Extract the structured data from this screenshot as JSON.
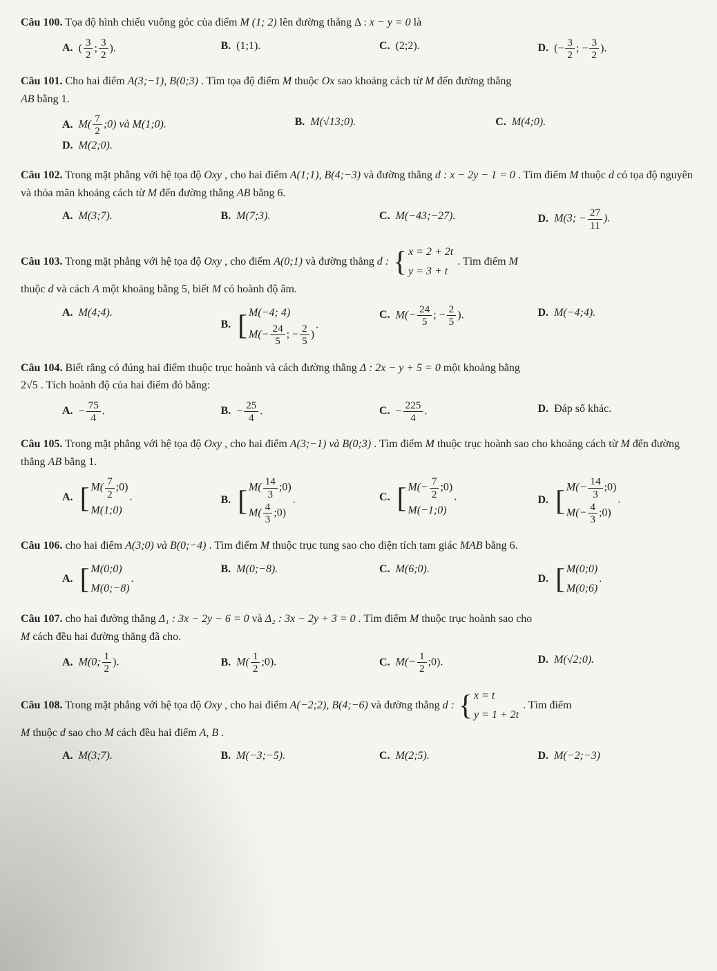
{
  "q100": {
    "label": "Câu 100.",
    "stem_pre": "Tọa độ hình chiếu vuông góc của điểm ",
    "point": "M (1; 2)",
    "stem_mid": " lên đường thẳng Δ : ",
    "eq": "x − y = 0",
    "stem_post": " là",
    "optA": {
      "l": "A.",
      "open": "(",
      "n1": "3",
      "d1": "2",
      "sep": ";",
      "n2": "3",
      "d2": "2",
      "close": ")."
    },
    "optB": {
      "l": "B.",
      "val": "(1;1)."
    },
    "optC": {
      "l": "C.",
      "val": "(2;2)."
    },
    "optD": {
      "l": "D.",
      "open": "(−",
      "n1": "3",
      "d1": "2",
      "sep": "; −",
      "n2": "3",
      "d2": "2",
      "close": ")."
    }
  },
  "q101": {
    "label": "Câu 101.",
    "stem1": "Cho hai điểm ",
    "pts": "A(3;−1), B(0;3)",
    "stem2": ". Tìm tọa độ điểm ",
    "M": "M",
    "stem3": " thuộc ",
    "Ox": "Ox",
    "stem4": " sao khoảng cách từ ",
    "stem5": " đến đường thẳng ",
    "AB": "AB",
    "stem6": " bằng 1.",
    "optA": {
      "l": "A.",
      "pre": "M(",
      "n": "7",
      "d": "2",
      "post": ";0) và M(1;0)."
    },
    "optB": {
      "l": "B.",
      "val": "M(√13;0)."
    },
    "optC": {
      "l": "C.",
      "val": "M(4;0)."
    },
    "optD": {
      "l": "D.",
      "val": "M(2;0)."
    }
  },
  "q102": {
    "label": "Câu 102.",
    "stem1": "Trong mặt phẳng với hệ tọa độ ",
    "Oxy": "Oxy",
    "stem2": ", cho hai điểm ",
    "pts": "A(1;1), B(4;−3)",
    "stem3": " và đường thẳng ",
    "d": "d : x − 2y − 1 = 0",
    "stem4": ". Tìm điểm ",
    "M": "M",
    "stem5": " thuộc ",
    "dname": "d",
    "stem6": " có tọa độ nguyên và thỏa mãn khoảng cách từ ",
    "stem7": " đến đường thẳng ",
    "AB": "AB",
    "stem8": " bằng 6.",
    "optA": {
      "l": "A.",
      "val": "M(3;7)."
    },
    "optB": {
      "l": "B.",
      "val": "M(7;3)."
    },
    "optC": {
      "l": "C.",
      "val": "M(−43;−27)."
    },
    "optD": {
      "l": "D.",
      "pre": "M(3; −",
      "n": "27",
      "d": "11",
      "post": ")."
    }
  },
  "q103": {
    "label": "Câu 103.",
    "stem1": "Trong mặt phẳng với hệ tọa độ ",
    "Oxy": "Oxy",
    "stem2": ", cho điểm ",
    "pt": "A(0;1)",
    "stem3": " và đường thẳng ",
    "dname": "d :",
    "sys1": "x = 2 + 2t",
    "sys2": "y = 3 + t",
    "stem4": ". Tìm điểm ",
    "M": "M",
    "stem5": " thuộc ",
    "d2": "d",
    "stem6": " và cách ",
    "A": "A",
    "stem7": " một khoảng bằng 5, biết ",
    "stem8": " có hoành độ âm.",
    "optA": {
      "l": "A.",
      "val": "M(4;4)."
    },
    "optB": {
      "l": "B.",
      "r1": "M(−4; 4)",
      "r2pre": "M(−",
      "n1": "24",
      "d1": "5",
      "sep": "; −",
      "n2": "2",
      "d2": "5",
      "r2post": ")",
      "dot": "."
    },
    "optC": {
      "l": "C.",
      "pre": "M(−",
      "n1": "24",
      "d1": "5",
      "sep": "; −",
      "n2": "2",
      "d2": "5",
      "post": ")."
    },
    "optD": {
      "l": "D.",
      "val": "M(−4;4)."
    }
  },
  "q104": {
    "label": "Câu 104.",
    "stem1": "Biết rằng có đúng hai điểm thuộc trục hoành và cách đường thẳng ",
    "eq": "Δ : 2x − y + 5 = 0",
    "stem2": " một khoảng bằng ",
    "val": "2√5",
    "stem3": ". Tích hoành độ của hai điểm đó bằng:",
    "optA": {
      "l": "A.",
      "pre": "−",
      "n": "75",
      "d": "4",
      "post": "."
    },
    "optB": {
      "l": "B.",
      "pre": "−",
      "n": "25",
      "d": "4",
      "post": "."
    },
    "optC": {
      "l": "C.",
      "pre": "−",
      "n": "225",
      "d": "4",
      "post": "."
    },
    "optD": {
      "l": "D.",
      "val": "Đáp số khác."
    }
  },
  "q105": {
    "label": "Câu 105.",
    "stem1": "Trong mặt phẳng với hệ tọa độ ",
    "Oxy": "Oxy",
    "stem2": ", cho hai điểm ",
    "pts": "A(3;−1) và B(0;3)",
    "stem3": ". Tìm điểm ",
    "M": "M",
    "stem4": " thuộc trục hoành sao cho khoảng cách từ ",
    "stem5": " đến đường thẳng ",
    "AB": "AB",
    "stem6": " bằng 1.",
    "optA": {
      "l": "A.",
      "r1pre": "M(",
      "n1": "7",
      "d1": "2",
      "r1post": ";0)",
      "r2": "M(1;0)",
      "dot": "."
    },
    "optB": {
      "l": "B.",
      "r1pre": "M(",
      "n1": "14",
      "d1": "3",
      "r1post": ";0)",
      "r2pre": "M(",
      "n2": "4",
      "d2": "3",
      "r2post": ";0)",
      "dot": "."
    },
    "optC": {
      "l": "C.",
      "r1pre": "M(−",
      "n1": "7",
      "d1": "2",
      "r1post": ";0)",
      "r2": "M(−1;0)",
      "dot": "."
    },
    "optD": {
      "l": "D.",
      "r1pre": "M(−",
      "n1": "14",
      "d1": "3",
      "r1post": ";0)",
      "r2pre": "M(−",
      "n2": "4",
      "d2": "3",
      "r2post": ";0)",
      "dot": "."
    }
  },
  "q106": {
    "label": "Câu 106.",
    "stem1": "cho hai điểm ",
    "pts": "A(3;0) và B(0;−4)",
    "stem2": ". Tìm điểm ",
    "M": "M",
    "stem3": " thuộc trục tung sao cho diện tích tam giác ",
    "MAB": "MAB",
    "stem4": " bằng 6.",
    "optA": {
      "l": "A.",
      "r1": "M(0;0)",
      "r2": "M(0;−8)",
      "dot": "."
    },
    "optB": {
      "l": "B.",
      "val": "M(0;−8)."
    },
    "optC": {
      "l": "C.",
      "val": "M(6;0)."
    },
    "optD": {
      "l": "D.",
      "r1": "M(0;0)",
      "r2": "M(0;6)",
      "dot": "."
    }
  },
  "q107": {
    "label": "Câu 107.",
    "stem1": "cho hai đường thẳng ",
    "d1": "Δ₁ : 3x − 2y − 6 = 0",
    "and": " và ",
    "d2": "Δ₂ : 3x − 2y + 3 = 0",
    "stem2": ". Tìm điểm ",
    "M": "M",
    "stem3": " thuộc trục hoành sao cho ",
    "stem4": " cách đều hai đường thẳng đã cho.",
    "optA": {
      "l": "A.",
      "pre": "M(0;",
      "n": "1",
      "d": "2",
      "post": ")."
    },
    "optB": {
      "l": "B.",
      "pre": "M(",
      "n": "1",
      "d": "2",
      "post": ";0)."
    },
    "optC": {
      "l": "C.",
      "pre": "M(−",
      "n": "1",
      "d": "2",
      "post": ";0)."
    },
    "optD": {
      "l": "D.",
      "val": "M(√2;0)."
    }
  },
  "q108": {
    "label": "Câu 108.",
    "stem1": "Trong mặt phẳng với hệ tọa độ ",
    "Oxy": "Oxy",
    "stem2": ", cho hai điểm ",
    "pts": "A(−2;2), B(4;−6)",
    "stem3": " và đường thẳng ",
    "dname": "d :",
    "sys1": "x = t",
    "sys2": "y = 1 + 2t",
    "stem4": ". Tìm điểm ",
    "M": "M",
    "stem5": " thuộc ",
    "d2": "d",
    "stem6": " sao cho ",
    "stem7": " cách đều hai điểm ",
    "AB2": "A, B",
    "stem8": ".",
    "optA": {
      "l": "A.",
      "val": "M(3;7)."
    },
    "optB": {
      "l": "B.",
      "val": "M(−3;−5)."
    },
    "optC": {
      "l": "C.",
      "val": "M(2;5)."
    },
    "optD": {
      "l": "D.",
      "val": "M(−2;−3)"
    }
  }
}
